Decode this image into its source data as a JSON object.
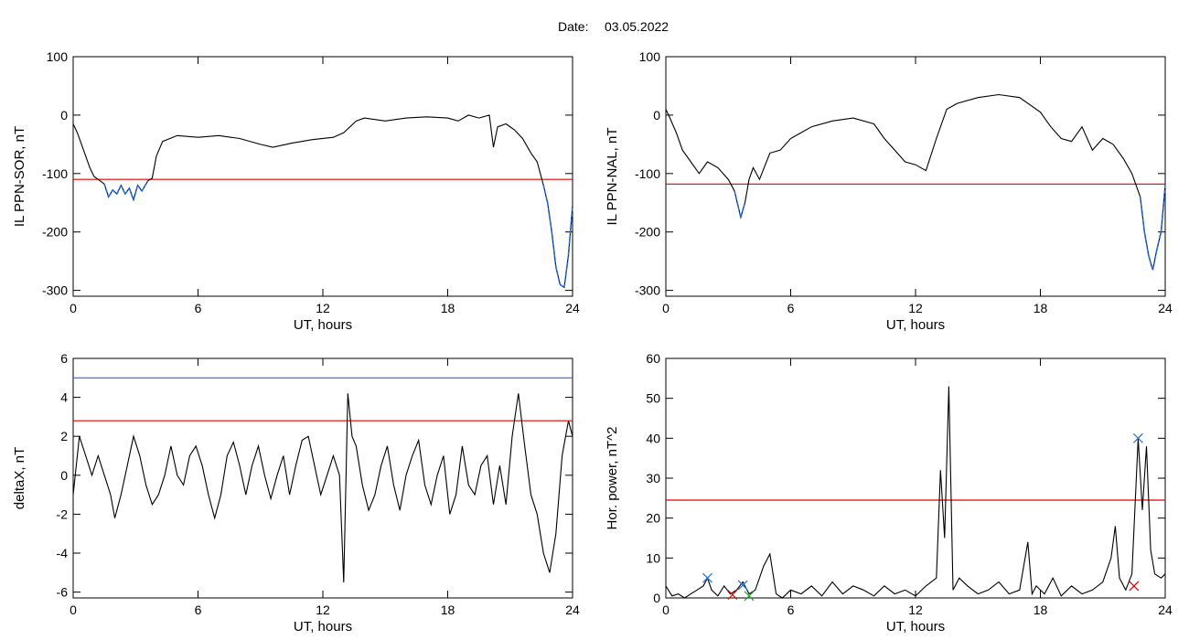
{
  "header": {
    "date_label": "Date:",
    "date_value": "03.05.2022"
  },
  "colors": {
    "line": "#000000",
    "threshold_red": "#e00000",
    "threshold_blue": "#1f6fe0",
    "marker_blue": "#1f6fe0",
    "marker_red": "#e00000",
    "marker_green": "#2aa02a"
  },
  "chart_data": [
    {
      "id": "il-sor",
      "type": "line",
      "ylabel": "IL PPN-SOR, nT",
      "xlabel": "UT, hours",
      "xlim": [
        0,
        24
      ],
      "ylim": [
        -310,
        100
      ],
      "xticks": [
        0,
        6,
        12,
        18,
        24
      ],
      "yticks": [
        -300,
        -200,
        -100,
        0,
        100
      ],
      "thresholds": [
        {
          "value": -110,
          "color": "#e00000"
        }
      ],
      "highlight_below": -110,
      "series": [
        {
          "x": [
            0,
            0.2,
            0.5,
            0.8,
            1.0,
            1.2,
            1.5,
            1.7,
            1.9,
            2.1,
            2.3,
            2.5,
            2.7,
            2.9,
            3.1,
            3.3,
            3.6,
            3.8,
            4.0,
            4.3,
            5.0,
            6.0,
            7.0,
            8.0,
            9.0,
            9.6,
            10.5,
            11.5,
            12.5,
            13.0,
            13.6,
            14.0,
            15.0,
            16.0,
            17.0,
            18.0,
            18.5,
            19.0,
            19.5,
            20.0,
            20.2,
            20.4,
            20.8,
            21.2,
            21.6,
            22.0,
            22.3,
            22.6,
            22.8,
            23.0,
            23.2,
            23.4,
            23.6,
            23.8,
            24.0
          ],
          "y": [
            -15,
            -30,
            -60,
            -90,
            -105,
            -110,
            -118,
            -140,
            -128,
            -135,
            -120,
            -135,
            -125,
            -145,
            -120,
            -130,
            -112,
            -108,
            -70,
            -45,
            -35,
            -38,
            -35,
            -40,
            -50,
            -55,
            -48,
            -42,
            -38,
            -30,
            -10,
            -5,
            -10,
            -5,
            -3,
            -5,
            -10,
            0,
            -5,
            0,
            -55,
            -20,
            -15,
            -25,
            -40,
            -65,
            -80,
            -120,
            -150,
            -200,
            -260,
            -290,
            -295,
            -240,
            -155
          ]
        }
      ]
    },
    {
      "id": "il-nal",
      "type": "line",
      "ylabel": "IL PPN-NAL, nT",
      "xlabel": "UT, hours",
      "xlim": [
        0,
        24
      ],
      "ylim": [
        -310,
        100
      ],
      "xticks": [
        0,
        6,
        12,
        18,
        24
      ],
      "yticks": [
        -300,
        -200,
        -100,
        0,
        100
      ],
      "thresholds": [
        {
          "value": -118,
          "color": "#e00000"
        }
      ],
      "highlight_below": -118,
      "series": [
        {
          "x": [
            0,
            0.2,
            0.5,
            0.8,
            1.2,
            1.6,
            2.0,
            2.5,
            3.0,
            3.3,
            3.6,
            3.8,
            4.0,
            4.2,
            4.5,
            5.0,
            5.5,
            6.0,
            6.5,
            7.0,
            8.0,
            9.0,
            10.0,
            10.5,
            11.0,
            11.5,
            12.0,
            12.5,
            13.0,
            13.5,
            14.0,
            15.0,
            16.0,
            17.0,
            18.0,
            18.5,
            19.0,
            19.5,
            20.0,
            20.5,
            21.0,
            21.5,
            22.0,
            22.4,
            22.8,
            23.0,
            23.2,
            23.4,
            23.6,
            23.8,
            24.0
          ],
          "y": [
            10,
            -5,
            -30,
            -60,
            -80,
            -100,
            -80,
            -90,
            -110,
            -130,
            -175,
            -150,
            -110,
            -90,
            -110,
            -65,
            -60,
            -40,
            -30,
            -20,
            -10,
            -5,
            -15,
            -40,
            -60,
            -80,
            -85,
            -95,
            -40,
            10,
            20,
            30,
            35,
            30,
            5,
            -20,
            -40,
            -45,
            -20,
            -60,
            -40,
            -50,
            -75,
            -100,
            -140,
            -200,
            -240,
            -265,
            -230,
            -200,
            -120
          ]
        }
      ]
    },
    {
      "id": "deltax",
      "type": "line",
      "ylabel": "deltaX, nT",
      "xlabel": "UT, hours",
      "xlim": [
        0,
        24
      ],
      "ylim": [
        -6.3,
        6
      ],
      "xticks": [
        0,
        6,
        12,
        18,
        24
      ],
      "yticks": [
        -6,
        -4,
        -2,
        0,
        2,
        4,
        6
      ],
      "thresholds": [
        {
          "value": 5.0,
          "color": "#1f6fe0"
        },
        {
          "value": 2.8,
          "color": "#e00000"
        }
      ],
      "series": [
        {
          "x": [
            0,
            0.3,
            0.6,
            0.9,
            1.2,
            1.5,
            1.8,
            2.0,
            2.3,
            2.6,
            2.9,
            3.2,
            3.5,
            3.8,
            4.1,
            4.4,
            4.7,
            5.0,
            5.3,
            5.6,
            5.9,
            6.2,
            6.5,
            6.8,
            7.1,
            7.4,
            7.7,
            8.0,
            8.3,
            8.6,
            8.9,
            9.2,
            9.5,
            9.8,
            10.1,
            10.4,
            10.7,
            11.0,
            11.3,
            11.6,
            11.9,
            12.2,
            12.5,
            12.8,
            13.0,
            13.2,
            13.4,
            13.6,
            13.9,
            14.2,
            14.5,
            14.8,
            15.1,
            15.4,
            15.7,
            16.0,
            16.3,
            16.6,
            16.9,
            17.2,
            17.5,
            17.8,
            18.1,
            18.4,
            18.7,
            19.0,
            19.3,
            19.6,
            19.9,
            20.2,
            20.5,
            20.8,
            21.1,
            21.4,
            21.7,
            22.0,
            22.3,
            22.6,
            22.9,
            23.2,
            23.5,
            23.8,
            24.0
          ],
          "y": [
            -1,
            2,
            1,
            0,
            1,
            0,
            -1,
            -2.2,
            -1,
            0.5,
            2,
            1,
            -0.5,
            -1.5,
            -1,
            0,
            1.5,
            0,
            -0.5,
            1,
            1.5,
            0.5,
            -1,
            -2.2,
            -1,
            1,
            1.7,
            0.5,
            -1,
            0.5,
            1.5,
            0,
            -1.2,
            0,
            1,
            -1,
            0.5,
            1.8,
            2,
            0.5,
            -1,
            0,
            1,
            0,
            -5.5,
            4.2,
            2,
            1.5,
            -0.5,
            -1.8,
            -1,
            0.5,
            1.5,
            -0.5,
            -1.8,
            0,
            1,
            1.8,
            -0.5,
            -1.5,
            0,
            1,
            -2,
            -1,
            1.5,
            -0.5,
            -1,
            0.5,
            1,
            -1.5,
            0.5,
            -1.5,
            2,
            4.2,
            1.5,
            -1,
            -2,
            -4,
            -5,
            -3,
            1,
            2.8,
            2
          ]
        }
      ]
    },
    {
      "id": "hor-power",
      "type": "line",
      "ylabel": "Hor. power, nT^2",
      "xlabel": "UT, hours",
      "xlim": [
        0,
        24
      ],
      "ylim": [
        0,
        60
      ],
      "xticks": [
        0,
        6,
        12,
        18,
        24
      ],
      "yticks": [
        0,
        10,
        20,
        30,
        40,
        50,
        60
      ],
      "thresholds": [
        {
          "value": 24.5,
          "color": "#e00000"
        }
      ],
      "series": [
        {
          "x": [
            0,
            0.3,
            0.6,
            0.9,
            1.2,
            1.5,
            1.8,
            2.0,
            2.2,
            2.5,
            2.8,
            3.1,
            3.4,
            3.7,
            4.0,
            4.3,
            4.5,
            4.7,
            5.0,
            5.3,
            5.6,
            6.0,
            6.5,
            7.0,
            7.5,
            8.0,
            8.5,
            9.0,
            9.5,
            10.0,
            10.5,
            11.0,
            11.5,
            12.0,
            12.5,
            13.0,
            13.2,
            13.4,
            13.6,
            13.8,
            14.1,
            14.5,
            15.0,
            15.5,
            16.0,
            16.5,
            17.0,
            17.4,
            17.6,
            17.8,
            18.2,
            18.6,
            19.0,
            19.5,
            20.0,
            20.5,
            21.0,
            21.4,
            21.6,
            21.8,
            22.1,
            22.4,
            22.7,
            22.9,
            23.1,
            23.3,
            23.5,
            23.8,
            24.0
          ],
          "y": [
            3,
            0.5,
            1,
            0,
            1,
            2,
            3,
            5,
            2,
            0.5,
            3,
            1,
            2,
            4,
            1,
            2,
            5,
            8,
            11,
            1,
            0,
            2,
            1,
            3,
            0.5,
            4,
            1,
            3,
            2,
            0.5,
            3,
            1,
            2,
            0.5,
            3,
            5,
            32,
            15,
            53,
            2,
            5,
            3,
            1,
            2,
            4,
            1,
            2,
            14,
            1,
            3,
            1,
            5,
            0.5,
            3,
            1,
            2,
            4,
            10,
            18,
            5,
            2,
            6,
            40,
            22,
            38,
            12,
            6,
            5,
            6
          ]
        }
      ],
      "markers": [
        {
          "x": 2.0,
          "y": 5.0,
          "color": "#1f6fe0"
        },
        {
          "x": 3.7,
          "y": 3.2,
          "color": "#1f6fe0"
        },
        {
          "x": 3.2,
          "y": 0.8,
          "color": "#e00000"
        },
        {
          "x": 4.0,
          "y": 0.5,
          "color": "#2aa02a"
        },
        {
          "x": 22.5,
          "y": 3.0,
          "color": "#e00000"
        },
        {
          "x": 22.7,
          "y": 40.0,
          "color": "#1f6fe0"
        }
      ]
    }
  ]
}
